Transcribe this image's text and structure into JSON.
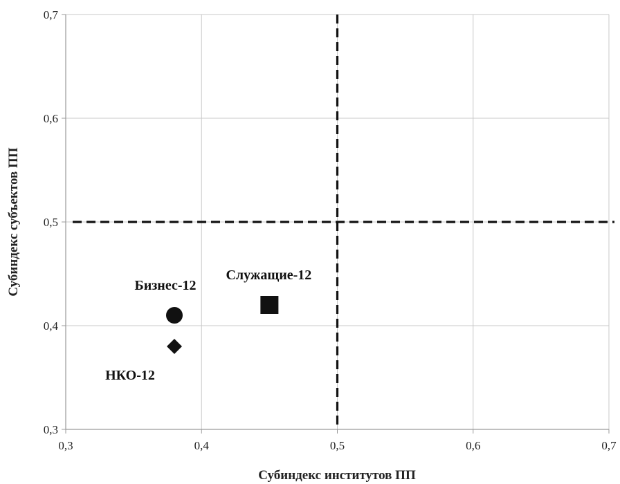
{
  "chart_data": {
    "type": "scatter",
    "title": "",
    "xlabel": "Субиндекс институтов ПП",
    "ylabel": "Субиндекс субъектов ПП",
    "xlim": [
      0.3,
      0.7
    ],
    "ylim": [
      0.3,
      0.7
    ],
    "x_ticks": [
      0.3,
      0.4,
      0.5,
      0.6,
      0.7
    ],
    "y_ticks": [
      0.3,
      0.4,
      0.5,
      0.6,
      0.7
    ],
    "x_tick_labels": [
      "0,3",
      "0,4",
      "0,5",
      "0,6",
      "0,7"
    ],
    "y_tick_labels": [
      "0,3",
      "0,4",
      "0,5",
      "0,6",
      "0,7"
    ],
    "grid": true,
    "reference_lines": {
      "x": 0.5,
      "y": 0.5,
      "style": "dashed"
    },
    "points": [
      {
        "label": "Бизнес-12",
        "x": 0.38,
        "y": 0.41,
        "marker": "circle"
      },
      {
        "label": "НКО-12",
        "x": 0.38,
        "y": 0.38,
        "marker": "diamond"
      },
      {
        "label": "Служащие-12",
        "x": 0.45,
        "y": 0.42,
        "marker": "square"
      }
    ],
    "colors": {
      "marker": "#111111",
      "grid": "#c8c8c8",
      "axis": "#9a9a9a",
      "reference": "#111111"
    }
  }
}
